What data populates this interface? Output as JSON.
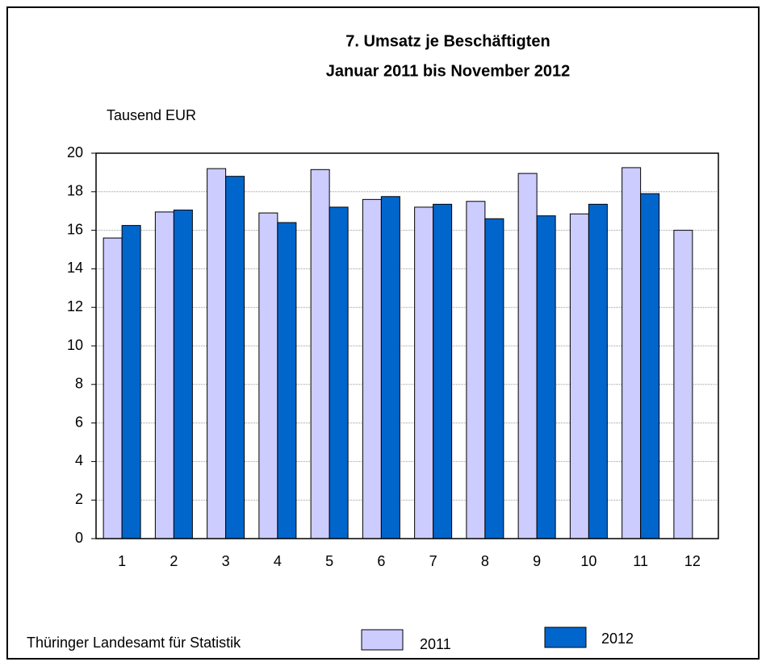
{
  "chart_data": {
    "type": "bar",
    "title": [
      "7. Umsatz je Beschäftigten",
      "Januar 2011 bis November 2012"
    ],
    "y_label": "Tausend EUR",
    "source": "Thüringer Landesamt für Statistik",
    "categories": [
      "1",
      "2",
      "3",
      "4",
      "5",
      "6",
      "7",
      "8",
      "9",
      "10",
      "11",
      "12"
    ],
    "series": [
      {
        "name": "2011",
        "color": "#ccccff",
        "values": [
          15.6,
          16.95,
          19.2,
          16.9,
          19.15,
          17.6,
          17.2,
          17.5,
          18.95,
          16.85,
          19.25,
          16.0
        ]
      },
      {
        "name": "2012",
        "color": "#0066cc",
        "values": [
          16.25,
          17.05,
          18.8,
          16.4,
          17.2,
          17.75,
          17.35,
          16.6,
          16.75,
          17.35,
          17.9,
          null
        ]
      }
    ],
    "ylim": [
      0,
      20
    ],
    "yticks": [
      0,
      2,
      4,
      6,
      8,
      10,
      12,
      14,
      16,
      18,
      20
    ],
    "grid": true
  }
}
